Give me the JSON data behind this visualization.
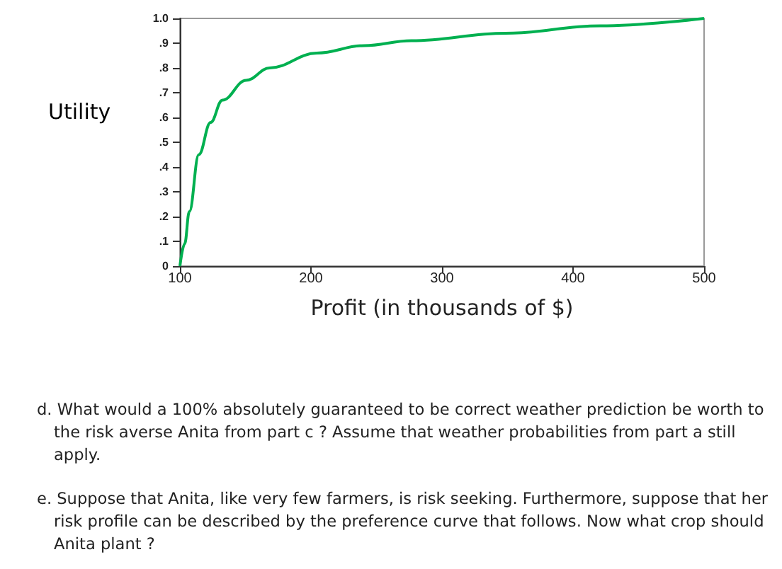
{
  "chart_data": {
    "type": "line",
    "xlabel": "Profit (in thousands of $)",
    "ylabel": "Utility",
    "x": [
      100,
      103.6,
      107.2,
      114.4,
      123.4,
      132.4,
      150.5,
      168.5,
      204.5,
      240.5,
      276.6,
      348.6,
      420.7,
      500
    ],
    "series": [
      {
        "color": "#00b050",
        "values": [
          0,
          0.09,
          0.22,
          0.45,
          0.58,
          0.67,
          0.75,
          0.8,
          0.86,
          0.89,
          0.91,
          0.94,
          0.97,
          1.0
        ]
      }
    ],
    "xlim": [
      100,
      500
    ],
    "xticks": [
      100,
      200,
      300,
      400,
      500
    ],
    "ylim": [
      0,
      1
    ],
    "yticks": [
      0,
      {
        "value": 0.1,
        "label": ".1"
      },
      {
        "value": 0.2,
        "label": ".2"
      },
      {
        "value": 0.3,
        "label": ".3"
      },
      {
        "value": 0.4,
        "label": ".4"
      },
      {
        "value": 0.5,
        "label": ".5"
      },
      {
        "value": 0.6,
        "label": ".6"
      },
      {
        "value": 0.7,
        "label": ".7"
      },
      {
        "value": 0.8,
        "label": ".8"
      },
      {
        "value": 0.9,
        "label": ".9"
      },
      {
        "value": 1,
        "label": "1.0"
      }
    ],
    "grid": false,
    "marker": "none",
    "line_style": "solid",
    "annotations": [
      "d. What would a 100% absolutely guaranteed to be correct weather prediction be worth to the risk averse Anita from part c ? Assume that weather probabilities from part a still apply.",
      "e. Suppose that Anita, like very few farmers, is risk seeking. Furthermore, suppose that her risk profile can be described by the preference curve that follows. Now what crop should Anita plant ?"
    ]
  }
}
